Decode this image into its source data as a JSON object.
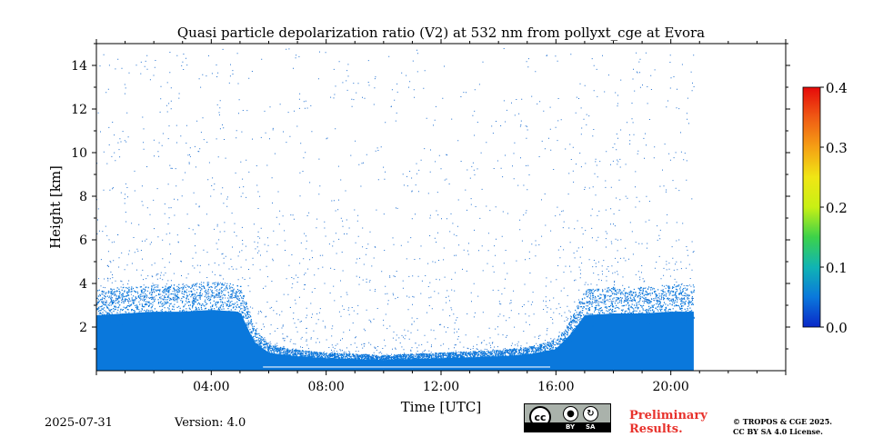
{
  "chart_data": {
    "type": "heatmap",
    "title": "Quasi particle depolarization ratio (V2) at 532 nm from pollyxt_cge at Evora",
    "xlabel": "Time [UTC]",
    "ylabel": "Height [km]",
    "x_range_hours": [
      0,
      24
    ],
    "y_range_km": [
      0,
      15
    ],
    "x_ticks": [
      {
        "value": 4,
        "label": "04:00"
      },
      {
        "value": 8,
        "label": "08:00"
      },
      {
        "value": 12,
        "label": "12:00"
      },
      {
        "value": 16,
        "label": "16:00"
      },
      {
        "value": 20,
        "label": "20:00"
      }
    ],
    "y_ticks": [
      {
        "value": 2,
        "label": "2"
      },
      {
        "value": 4,
        "label": "4"
      },
      {
        "value": 6,
        "label": "6"
      },
      {
        "value": 8,
        "label": "8"
      },
      {
        "value": 10,
        "label": "10"
      },
      {
        "value": 12,
        "label": "12"
      },
      {
        "value": 14,
        "label": "14"
      }
    ],
    "colorbar": {
      "range": [
        0.0,
        0.4
      ],
      "ticks": [
        {
          "value": 0.0,
          "label": "0.0"
        },
        {
          "value": 0.1,
          "label": "0.1"
        },
        {
          "value": 0.2,
          "label": "0.2"
        },
        {
          "value": 0.3,
          "label": "0.3"
        },
        {
          "value": 0.4,
          "label": "0.4"
        }
      ],
      "colormap": [
        "#0a28c8",
        "#0a78dc",
        "#10b4b4",
        "#3cd24a",
        "#c8f014",
        "#f0e614",
        "#f5a014",
        "#f05a14",
        "#e60a0a"
      ]
    },
    "data_end_hour": 20.8,
    "layer_top_profile_km": [
      {
        "hour": 0.0,
        "top": 3.1
      },
      {
        "hour": 1.0,
        "top": 3.2
      },
      {
        "hour": 2.0,
        "top": 3.3
      },
      {
        "hour": 3.0,
        "top": 3.3
      },
      {
        "hour": 4.0,
        "top": 3.4
      },
      {
        "hour": 5.0,
        "top": 3.3
      },
      {
        "hour": 5.5,
        "top": 1.6
      },
      {
        "hour": 6.0,
        "top": 1.0
      },
      {
        "hour": 7.0,
        "top": 0.8
      },
      {
        "hour": 8.0,
        "top": 0.7
      },
      {
        "hour": 10.0,
        "top": 0.6
      },
      {
        "hour": 12.0,
        "top": 0.7
      },
      {
        "hour": 14.0,
        "top": 0.8
      },
      {
        "hour": 15.0,
        "top": 0.9
      },
      {
        "hour": 16.0,
        "top": 1.2
      },
      {
        "hour": 16.6,
        "top": 2.2
      },
      {
        "hour": 17.0,
        "top": 3.1
      },
      {
        "hour": 18.0,
        "top": 3.2
      },
      {
        "hour": 19.0,
        "top": 3.2
      },
      {
        "hour": 20.0,
        "top": 3.3
      },
      {
        "hour": 20.8,
        "top": 3.3
      }
    ],
    "dominant_value": 0.05
  },
  "footer": {
    "date": "2025-07-31",
    "version": "Version: 4.0",
    "preliminary_line1": "Preliminary",
    "preliminary_line2": "Results.",
    "copyright_line1": "© TROPOS & CGE 2025.",
    "copyright_line2": "CC BY SA 4.0 License."
  },
  "license_badge": {
    "cc": "cc",
    "by": "BY",
    "sa": "SA"
  },
  "colors": {
    "layer": "#0a78dc",
    "preliminary": "#e8322c"
  }
}
